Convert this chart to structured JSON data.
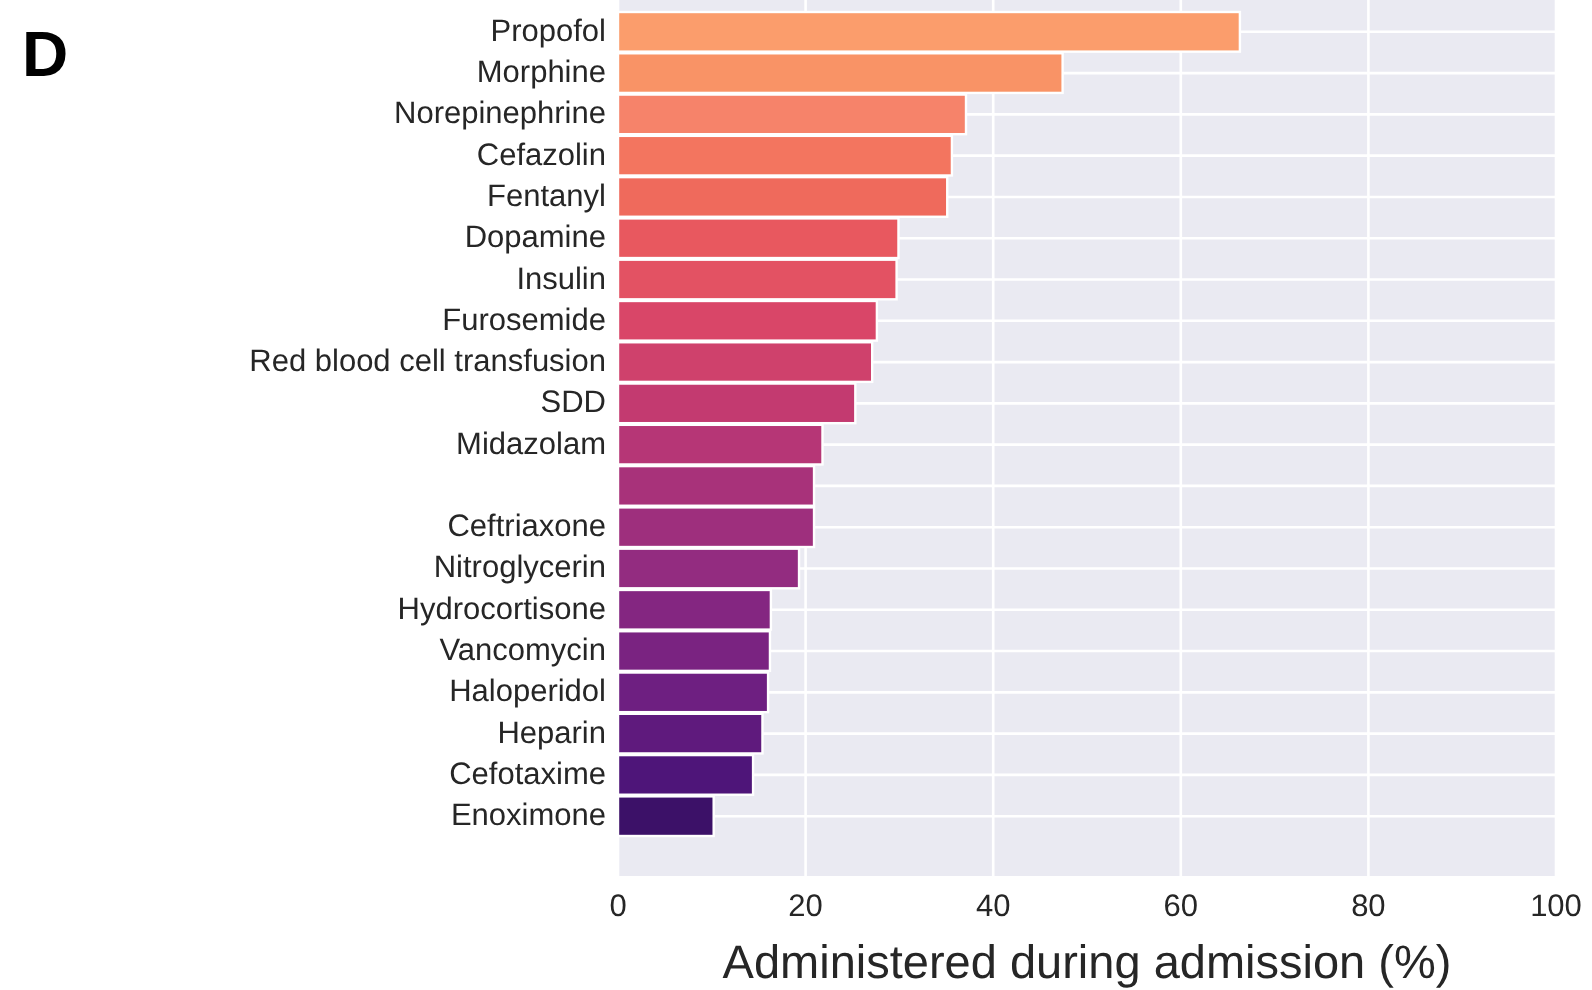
{
  "chart_data": {
    "type": "bar",
    "orientation": "horizontal",
    "title": "D",
    "xlabel": "Administered during admission (%)",
    "categories": [
      "Propofol",
      "Morphine",
      "Norepinephrine",
      "Cefazolin",
      "Fentanyl",
      "Dopamine",
      "Insulin",
      "Furosemide",
      "Red blood cell transfusion",
      "SDD",
      "Midazolam",
      null,
      "Ceftriaxone",
      "Nitroglycerin",
      "Hydrocortisone",
      "Vancomycin",
      "Haloperidol",
      "Heparin",
      "Cefotaxime",
      "Enoximone"
    ],
    "values": [
      66.3,
      47.4,
      37.1,
      35.6,
      35.1,
      29.9,
      29.7,
      27.6,
      27.1,
      25.3,
      21.8,
      20.9,
      20.9,
      19.3,
      16.3,
      16.2,
      16.0,
      15.4,
      14.4,
      10.2
    ],
    "colors": [
      "#fb9d6c",
      "#f99366",
      "#f6836a",
      "#f3755f",
      "#ef6a5c",
      "#e8585f",
      "#e35263",
      "#d94668",
      "#cf416c",
      "#c33a70",
      "#b63676",
      "#a8327a",
      "#9e2f7d",
      "#932c80",
      "#842681",
      "#7a2381",
      "#6e1f81",
      "#5f1a7d",
      "#4e1579",
      "#3c1168"
    ],
    "xlim": [
      0,
      100
    ],
    "xticks": [
      0,
      20,
      40,
      60,
      80,
      100
    ],
    "grid": true
  }
}
